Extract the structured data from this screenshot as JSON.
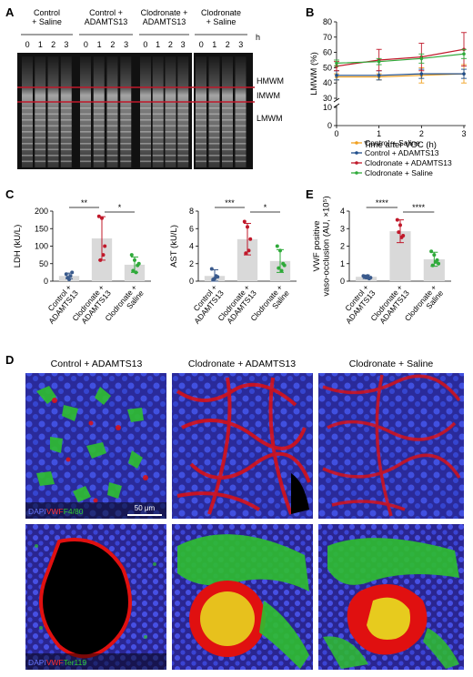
{
  "panel_a": {
    "letter": "A",
    "groups": [
      "Control\n+ Saline",
      "Control +\nADAMTS13",
      "Clodronate +\nADAMTS13",
      "Clodronate\n+ Saline"
    ],
    "lane_labels": [
      "0",
      "1",
      "2",
      "3"
    ],
    "h_label": "h",
    "band_labels": [
      "HMWM",
      "IMWM",
      "LMWM"
    ]
  },
  "panel_b": {
    "letter": "B"
  },
  "panel_c": {
    "letter": "C"
  },
  "panel_e": {
    "letter": "E"
  },
  "panel_d": {
    "letter": "D",
    "column_titles": [
      "Control + ADAMTS13",
      "Clodronate + ADAMTS13",
      "Clodronate + Saline"
    ],
    "scale_bar": "50 μm",
    "legend_top": {
      "dapi": "DAPI",
      "vwf": "VWF",
      "marker": "F4/80"
    },
    "legend_bottom": {
      "dapi": "DAPI",
      "vwf": "VWF",
      "marker": "Ter119"
    },
    "colors": {
      "dapi": "#3b4bd8",
      "vwf": "#e01010",
      "f480": "#2fbf2f"
    }
  },
  "chart_data": [
    {
      "panel": "B",
      "type": "line",
      "x": [
        0,
        1,
        2,
        3
      ],
      "xlabel": "Time after VOC (h)",
      "ylabel": "LMWM (%)",
      "ylim": [
        0,
        80
      ],
      "yticks": [
        0,
        10,
        20,
        30,
        40,
        50,
        60,
        70,
        80
      ],
      "axis_break": [
        10,
        30
      ],
      "series": [
        {
          "name": "Control + Saline",
          "color": "#f0a020",
          "values": [
            44,
            44,
            45,
            46
          ],
          "err": [
            2,
            2,
            5,
            6
          ]
        },
        {
          "name": "Control + ADAMTS13",
          "color": "#1f4e8c",
          "values": [
            45,
            45,
            46,
            46
          ],
          "err": [
            3,
            3,
            3,
            3
          ]
        },
        {
          "name": "Clodronate + ADAMTS13",
          "color": "#c0182a",
          "values": [
            51,
            55,
            57,
            62
          ],
          "err": [
            3,
            7,
            9,
            11
          ]
        },
        {
          "name": "Clodronate + Saline",
          "color": "#2faa3a",
          "values": [
            53,
            54,
            56,
            59
          ],
          "err": [
            2,
            2,
            3,
            3
          ]
        }
      ]
    },
    {
      "panel": "C-LDH",
      "type": "bar",
      "categories": [
        "Control +\nADAMTS13",
        "Clodronate +\nADAMTS13",
        "Clodronate +\nSaline"
      ],
      "values": [
        15,
        122,
        47
      ],
      "err": [
        8,
        62,
        22
      ],
      "colors": [
        "#3a5a8c",
        "#c0182a",
        "#2faa3a"
      ],
      "points": [
        [
          20,
          5,
          25,
          10,
          15
        ],
        [
          185,
          180,
          100,
          60,
          75
        ],
        [
          75,
          60,
          45,
          30,
          25,
          50
        ]
      ],
      "ylabel": "LDH (kU/L)",
      "ylim": [
        0,
        200
      ],
      "yticks": [
        0,
        50,
        100,
        150,
        200
      ],
      "significance": [
        {
          "from": 0,
          "to": 1,
          "label": "**"
        },
        {
          "from": 1,
          "to": 2,
          "label": "*"
        }
      ]
    },
    {
      "panel": "C-AST",
      "type": "bar",
      "categories": [
        "Control +\nADAMTS13",
        "Clodronate +\nADAMTS13",
        "Clodronate +\nSaline"
      ],
      "values": [
        0.6,
        4.8,
        2.3
      ],
      "err": [
        0.7,
        1.8,
        1.3
      ],
      "colors": [
        "#3a5a8c",
        "#c0182a",
        "#2faa3a"
      ],
      "points": [
        [
          1.4,
          0.3,
          0.5,
          0.2,
          0.6
        ],
        [
          6.8,
          6.2,
          4.8,
          3.2,
          3.5
        ],
        [
          4.0,
          3.5,
          2.0,
          1.5,
          1.2,
          1.8
        ]
      ],
      "ylabel": "AST (kU/L)",
      "ylim": [
        0,
        8
      ],
      "yticks": [
        0,
        2,
        4,
        6,
        8
      ],
      "significance": [
        {
          "from": 0,
          "to": 1,
          "label": "***"
        },
        {
          "from": 1,
          "to": 2,
          "label": "*"
        }
      ]
    },
    {
      "panel": "E",
      "type": "bar",
      "categories": [
        "Control +\nADAMTS13",
        "Clodronate +\nADAMTS13",
        "Clodronate +\nSaline"
      ],
      "values": [
        0.25,
        2.85,
        1.25
      ],
      "err": [
        0.1,
        0.65,
        0.4
      ],
      "colors": [
        "#3a5a8c",
        "#c0182a",
        "#2faa3a"
      ],
      "points": [
        [
          0.3,
          0.2,
          0.15,
          0.25,
          0.3,
          0.2
        ],
        [
          3.5,
          3.2,
          2.6,
          2.8,
          2.5
        ],
        [
          1.7,
          1.5,
          1.2,
          0.9,
          1.1,
          1.0
        ]
      ],
      "ylabel": "VWF positive\nvaso-occlusion (AU, ×10⁵)",
      "ylim": [
        0,
        4
      ],
      "yticks": [
        0,
        1,
        2,
        3,
        4
      ],
      "significance": [
        {
          "from": 0,
          "to": 1,
          "label": "****"
        },
        {
          "from": 1,
          "to": 2,
          "label": "****"
        }
      ]
    }
  ]
}
